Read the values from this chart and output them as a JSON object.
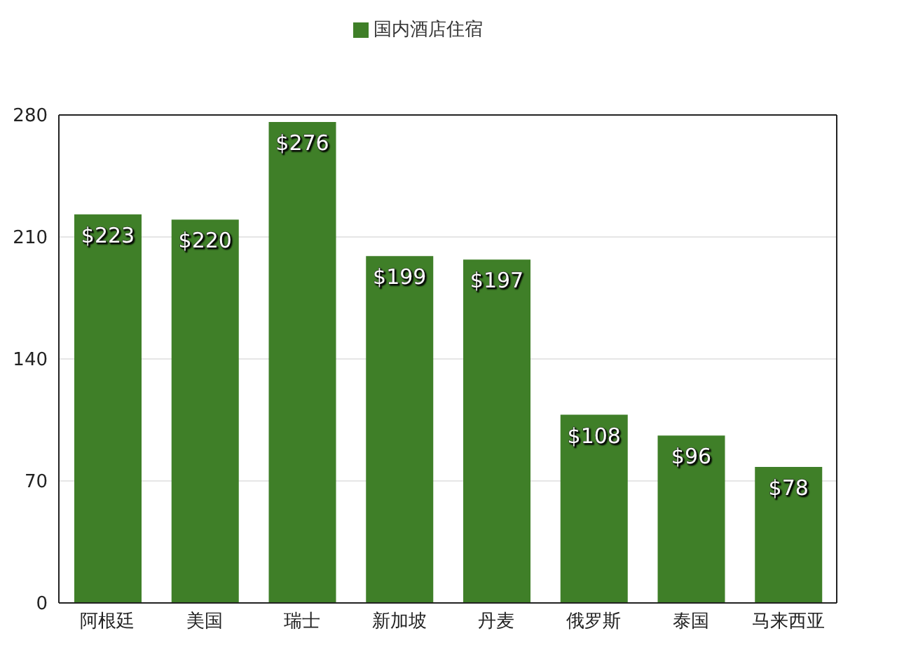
{
  "chart_data": {
    "type": "bar",
    "categories": [
      "阿根廷",
      "美国",
      "瑞士",
      "新加坡",
      "丹麦",
      "俄罗斯",
      "泰国",
      "马来西亚"
    ],
    "series": [
      {
        "name": "国内酒店住宿",
        "color": "#3f7f28",
        "values": [
          223,
          220,
          276,
          199,
          197,
          108,
          96,
          78
        ],
        "value_labels": [
          "$223",
          "$220",
          "$276",
          "$199",
          "$197",
          "$108",
          "$96",
          "$78"
        ]
      }
    ],
    "ylim": [
      0,
      280
    ],
    "yticks": [
      0,
      70,
      140,
      210,
      280
    ],
    "grid": "y",
    "legend": "top"
  }
}
